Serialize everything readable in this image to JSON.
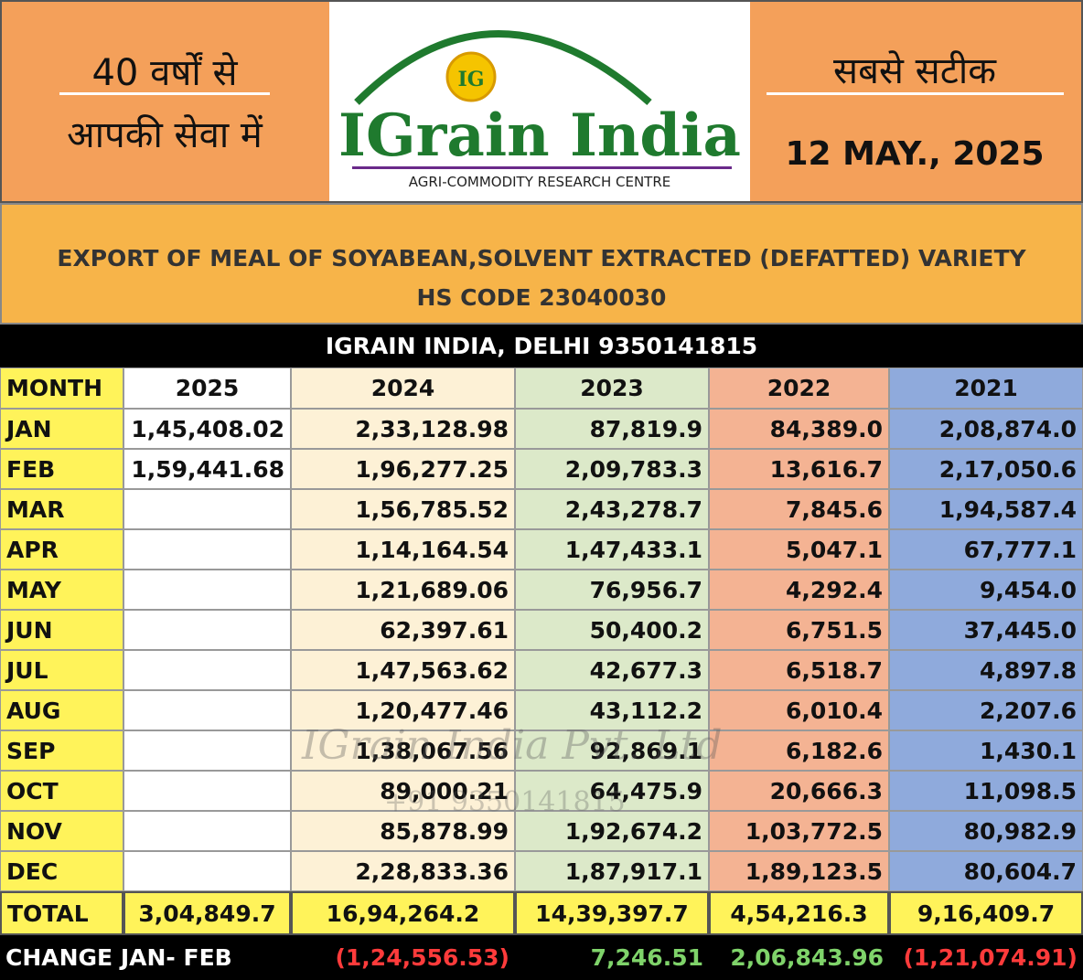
{
  "header": {
    "left": [
      "40 वर्षों से",
      "आपकी सेवा में"
    ],
    "logo": {
      "mark": "IG",
      "name": "IGrain India",
      "tagline": "AGRI-COMMODITY RESEARCH CENTRE"
    },
    "right": {
      "tagline": "सबसे सटीक",
      "date": "12 MAY., 2025"
    }
  },
  "title": "EXPORT OF MEAL OF SOYABEAN,SOLVENT EXTRACTED (DEFATTED) VARIETY HS CODE 23040030",
  "subtitle": "IGRAIN INDIA, DELHI 9350141815",
  "watermark": [
    "IGrain India Pvt. Ltd",
    "+91 9350141815"
  ],
  "table": {
    "columns": [
      "MONTH",
      "2025",
      "2024",
      "2023",
      "2022",
      "2021"
    ],
    "rows": [
      [
        "JAN",
        "1,45,408.02",
        "2,33,128.98",
        "87,819.9",
        "84,389.0",
        "2,08,874.0"
      ],
      [
        "FEB",
        "1,59,441.68",
        "1,96,277.25",
        "2,09,783.3",
        "13,616.7",
        "2,17,050.6"
      ],
      [
        "MAR",
        null,
        "1,56,785.52",
        "2,43,278.7",
        "7,845.6",
        "1,94,587.4"
      ],
      [
        "APR",
        null,
        "1,14,164.54",
        "1,47,433.1",
        "5,047.1",
        "67,777.1"
      ],
      [
        "MAY",
        null,
        "1,21,689.06",
        "76,956.7",
        "4,292.4",
        "9,454.0"
      ],
      [
        "JUN",
        null,
        "62,397.61",
        "50,400.2",
        "6,751.5",
        "37,445.0"
      ],
      [
        "JUL",
        null,
        "1,47,563.62",
        "42,677.3",
        "6,518.7",
        "4,897.8"
      ],
      [
        "AUG",
        null,
        "1,20,477.46",
        "43,112.2",
        "6,010.4",
        "2,207.6"
      ],
      [
        "SEP",
        null,
        "1,38,067.56",
        "92,869.1",
        "6,182.6",
        "1,430.1"
      ],
      [
        "OCT",
        null,
        "89,000.21",
        "64,475.9",
        "20,666.3",
        "11,098.5"
      ],
      [
        "NOV",
        null,
        "85,878.99",
        "1,92,674.2",
        "1,03,772.5",
        "80,982.9"
      ],
      [
        "DEC",
        null,
        "2,28,833.36",
        "1,87,917.1",
        "1,89,123.5",
        "80,604.7"
      ]
    ],
    "total": [
      "TOTAL",
      "3,04,849.7",
      "16,94,264.2",
      "14,39,397.7",
      "4,54,216.3",
      "9,16,409.7"
    ],
    "change": [
      "CHANGE JAN- FEB",
      null,
      "(1,24,556.53)",
      "7,246.51",
      "2,06,843.96",
      "(1,21,074.91)"
    ]
  }
}
